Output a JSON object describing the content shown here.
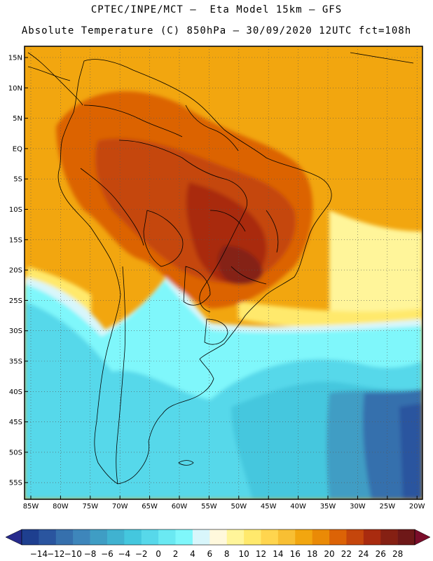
{
  "header": {
    "line1": "CPTEC/INPE/MCT –  Eta Model 15km – GFS",
    "line2": "Absolute Temperature (C) 850hPa – 30/09/2020 12UTC fct=108h"
  },
  "map": {
    "lat_labels": [
      "15N",
      "10N",
      "5N",
      "EQ",
      "5S",
      "10S",
      "15S",
      "20S",
      "25S",
      "30S",
      "35S",
      "40S",
      "45S",
      "50S",
      "55S"
    ],
    "lon_labels": [
      "85W",
      "80W",
      "75W",
      "70W",
      "65W",
      "60W",
      "55W",
      "50W",
      "45W",
      "40W",
      "35W",
      "30W",
      "25W",
      "20W"
    ]
  },
  "colorbar": {
    "labels": [
      "-14",
      "-12",
      "-10",
      "-8",
      "-6",
      "-4",
      "-2",
      "0",
      "2",
      "4",
      "6",
      "8",
      "10",
      "12",
      "14",
      "16",
      "18",
      "20",
      "22",
      "24",
      "26",
      "28"
    ],
    "colors": [
      "#1e3f8f",
      "#2a559f",
      "#3670ad",
      "#3e86bb",
      "#3f9dc4",
      "#40b2d0",
      "#44c7de",
      "#57d8ea",
      "#6ae9f2",
      "#7ff7fb",
      "#d8f6fb",
      "#fff8dc",
      "#fff59a",
      "#ffe96c",
      "#ffd54e",
      "#f8bf33",
      "#f2a60f",
      "#ea8a06",
      "#dc6306",
      "#c5460c",
      "#a92b0f",
      "#852013",
      "#6e1818"
    ],
    "end_left": "#262a8c",
    "end_right": "#7a0d2a"
  },
  "palette": {
    "ocean_warm": "#f2a60f",
    "ocean_warm_light": "#f8bf33",
    "land_hot": "#c5460c",
    "land_hotter": "#a92b0f",
    "land_hottest": "#852013",
    "land_warm": "#dc6306",
    "land_mid": "#ea8a06",
    "subtrop": "#ffe96c",
    "subtrop_pale": "#fff59a",
    "cool_pale": "#d8f6fb",
    "cool_cyan": "#7ff7fb",
    "cool_mid": "#57d8ea",
    "cool_deep": "#44c7de",
    "cold1": "#3f9dc4",
    "cold2": "#3670ad",
    "cold3": "#2a559f"
  }
}
